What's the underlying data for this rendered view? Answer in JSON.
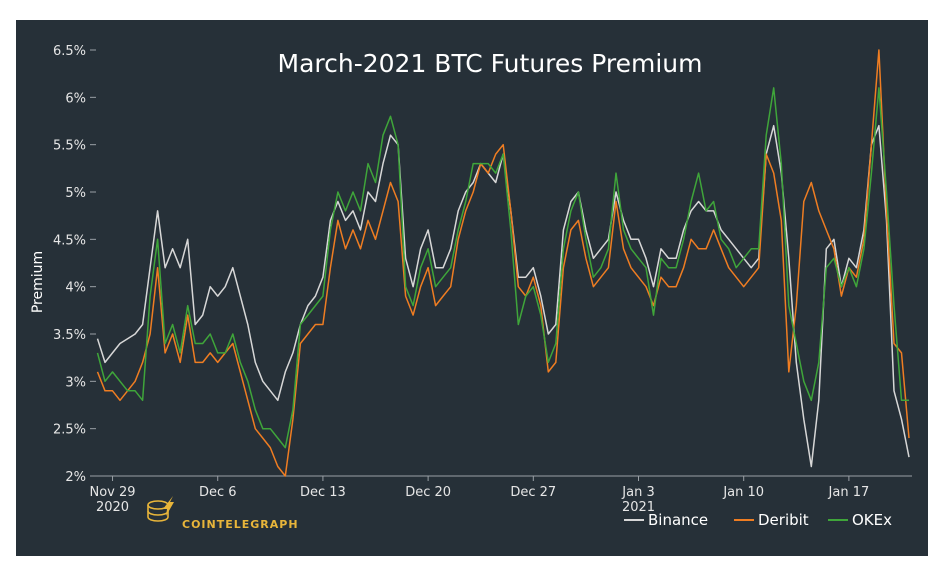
{
  "chart_data": {
    "type": "line",
    "title": "March-2021 BTC Futures Premium",
    "xlabel": "",
    "ylabel": "Premium",
    "ylim": [
      2,
      6.5
    ],
    "y_ticks": [
      "2%",
      "2.5%",
      "3%",
      "3.5%",
      "4%",
      "4.5%",
      "5%",
      "5.5%",
      "6%",
      "6.5%"
    ],
    "x_ticks": [
      {
        "label": "Nov 29",
        "sub": "2020",
        "x": 0
      },
      {
        "label": "Dec 6",
        "sub": "",
        "x": 7
      },
      {
        "label": "Dec 13",
        "sub": "",
        "x": 14
      },
      {
        "label": "Dec 20",
        "sub": "",
        "x": 21
      },
      {
        "label": "Dec 27",
        "sub": "",
        "x": 28
      },
      {
        "label": "Jan 3",
        "sub": "2021",
        "x": 35
      },
      {
        "label": "Jan 10",
        "sub": "",
        "x": 42
      },
      {
        "label": "Jan 17",
        "sub": "",
        "x": 49
      }
    ],
    "xlim": [
      -1.1,
      53.2
    ],
    "legend_position": "bottom-right",
    "grid": false,
    "x": [
      -1,
      -0.5,
      0,
      0.5,
      1,
      1.5,
      2,
      2.5,
      3,
      3.5,
      4,
      4.5,
      5,
      5.5,
      6,
      6.5,
      7,
      7.5,
      8,
      8.5,
      9,
      9.5,
      10,
      10.5,
      11,
      11.5,
      12,
      12.5,
      13,
      13.5,
      14,
      14.5,
      15,
      15.5,
      16,
      16.5,
      17,
      17.5,
      18,
      18.5,
      19,
      19.5,
      20,
      20.5,
      21,
      21.5,
      22,
      22.5,
      23,
      23.5,
      24,
      24.5,
      25,
      25.5,
      26,
      26.5,
      27,
      27.5,
      28,
      28.5,
      29,
      29.5,
      30,
      30.5,
      31,
      31.5,
      32,
      32.5,
      33,
      33.5,
      34,
      34.5,
      35,
      35.5,
      36,
      36.5,
      37,
      37.5,
      38,
      38.5,
      39,
      39.5,
      40,
      40.5,
      41,
      41.5,
      42,
      42.5,
      43,
      43.5,
      44,
      44.5,
      45,
      45.5,
      46,
      46.5,
      47,
      47.5,
      48,
      48.5,
      49,
      49.5,
      50,
      50.5,
      51,
      51.5,
      52,
      52.5,
      53
    ],
    "series": [
      {
        "name": "Binance",
        "color": "#d7d7d7",
        "values": [
          3.45,
          3.2,
          3.3,
          3.4,
          3.45,
          3.5,
          3.6,
          4.2,
          4.8,
          4.2,
          4.4,
          4.2,
          4.5,
          3.6,
          3.7,
          4.0,
          3.9,
          4.0,
          4.2,
          3.9,
          3.6,
          3.2,
          3.0,
          2.9,
          2.8,
          3.1,
          3.3,
          3.6,
          3.8,
          3.9,
          4.1,
          4.7,
          4.9,
          4.7,
          4.8,
          4.6,
          5.0,
          4.9,
          5.3,
          5.6,
          5.5,
          4.3,
          4.0,
          4.4,
          4.6,
          4.2,
          4.2,
          4.4,
          4.8,
          5.0,
          5.1,
          5.3,
          5.2,
          5.1,
          5.4,
          4.8,
          4.1,
          4.1,
          4.2,
          3.9,
          3.5,
          3.6,
          4.6,
          4.9,
          5.0,
          4.6,
          4.3,
          4.4,
          4.5,
          5.0,
          4.7,
          4.5,
          4.5,
          4.3,
          4.0,
          4.4,
          4.3,
          4.3,
          4.6,
          4.8,
          4.9,
          4.8,
          4.8,
          4.6,
          4.5,
          4.4,
          4.3,
          4.2,
          4.3,
          5.4,
          5.7,
          5.2,
          4.3,
          3.2,
          2.6,
          2.1,
          2.8,
          4.4,
          4.5,
          4.0,
          4.3,
          4.2,
          4.6,
          5.5,
          5.7,
          4.7,
          2.9,
          2.6,
          2.2
        ]
      },
      {
        "name": "Deribit",
        "color": "#ef7d22",
        "values": [
          3.1,
          2.9,
          2.9,
          2.8,
          2.9,
          3.0,
          3.2,
          3.5,
          4.2,
          3.3,
          3.5,
          3.2,
          3.7,
          3.2,
          3.2,
          3.3,
          3.2,
          3.3,
          3.4,
          3.1,
          2.8,
          2.5,
          2.4,
          2.3,
          2.1,
          2.0,
          2.6,
          3.4,
          3.5,
          3.6,
          3.6,
          4.2,
          4.7,
          4.4,
          4.6,
          4.4,
          4.7,
          4.5,
          4.8,
          5.1,
          4.9,
          3.9,
          3.7,
          4.0,
          4.2,
          3.8,
          3.9,
          4.0,
          4.5,
          4.8,
          5.0,
          5.3,
          5.2,
          5.4,
          5.5,
          4.8,
          4.0,
          3.9,
          4.1,
          3.8,
          3.1,
          3.2,
          4.2,
          4.6,
          4.7,
          4.3,
          4.0,
          4.1,
          4.2,
          4.9,
          4.4,
          4.2,
          4.1,
          4.0,
          3.8,
          4.1,
          4.0,
          4.0,
          4.2,
          4.5,
          4.4,
          4.4,
          4.6,
          4.4,
          4.2,
          4.1,
          4.0,
          4.1,
          4.2,
          5.4,
          5.2,
          4.7,
          3.1,
          3.8,
          4.9,
          5.1,
          4.8,
          4.6,
          4.4,
          3.9,
          4.2,
          4.1,
          4.5,
          5.5,
          6.5,
          4.8,
          3.4,
          3.3,
          2.4
        ]
      },
      {
        "name": "OKEx",
        "color": "#3fa53a",
        "values": [
          3.3,
          3.0,
          3.1,
          3.0,
          2.9,
          2.9,
          2.8,
          3.9,
          4.5,
          3.4,
          3.6,
          3.3,
          3.8,
          3.4,
          3.4,
          3.5,
          3.3,
          3.3,
          3.5,
          3.2,
          3.0,
          2.7,
          2.5,
          2.5,
          2.4,
          2.3,
          2.7,
          3.6,
          3.7,
          3.8,
          3.9,
          4.6,
          5.0,
          4.8,
          5.0,
          4.8,
          5.3,
          5.1,
          5.6,
          5.8,
          5.5,
          4.0,
          3.8,
          4.2,
          4.4,
          4.0,
          4.1,
          4.2,
          4.6,
          4.9,
          5.3,
          5.3,
          5.3,
          5.2,
          5.4,
          4.6,
          3.6,
          3.9,
          4.0,
          3.7,
          3.2,
          3.4,
          4.4,
          4.8,
          5.0,
          4.5,
          4.1,
          4.2,
          4.4,
          5.2,
          4.6,
          4.4,
          4.3,
          4.2,
          3.7,
          4.3,
          4.2,
          4.2,
          4.5,
          4.9,
          5.2,
          4.8,
          4.9,
          4.5,
          4.4,
          4.2,
          4.3,
          4.4,
          4.4,
          5.6,
          6.1,
          5.3,
          3.8,
          3.4,
          3.0,
          2.8,
          3.2,
          4.2,
          4.3,
          4.0,
          4.2,
          4.0,
          4.4,
          5.2,
          6.1,
          5.0,
          3.8,
          2.8,
          2.8
        ]
      }
    ]
  },
  "branding": {
    "name": "COINTELEGRAPH"
  }
}
